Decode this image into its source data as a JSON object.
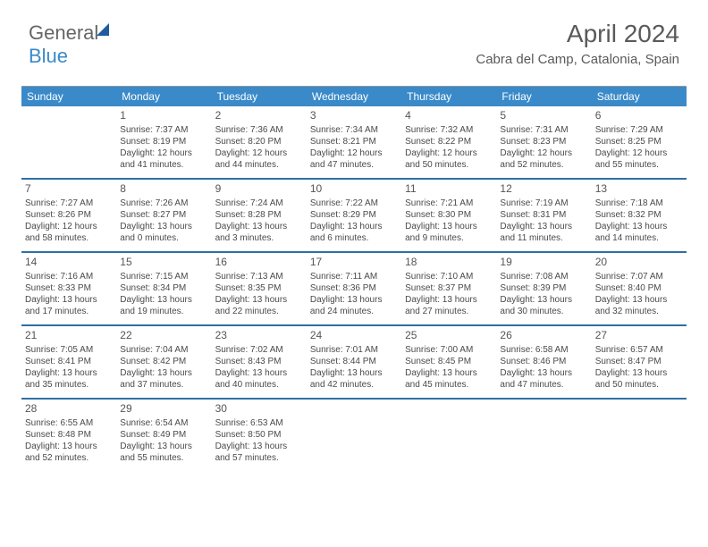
{
  "logo": {
    "general": "General",
    "blue": "Blue"
  },
  "header": {
    "month_title": "April 2024",
    "location": "Cabra del Camp, Catalonia, Spain"
  },
  "colors": {
    "header_bg": "#3a8ac9",
    "week_divider": "#2f6fa3",
    "text": "#555555"
  },
  "weekdays": [
    "Sunday",
    "Monday",
    "Tuesday",
    "Wednesday",
    "Thursday",
    "Friday",
    "Saturday"
  ],
  "days": [
    {
      "n": "1",
      "sr": "7:37 AM",
      "ss": "8:19 PM",
      "dl": "12 hours and 41 minutes."
    },
    {
      "n": "2",
      "sr": "7:36 AM",
      "ss": "8:20 PM",
      "dl": "12 hours and 44 minutes."
    },
    {
      "n": "3",
      "sr": "7:34 AM",
      "ss": "8:21 PM",
      "dl": "12 hours and 47 minutes."
    },
    {
      "n": "4",
      "sr": "7:32 AM",
      "ss": "8:22 PM",
      "dl": "12 hours and 50 minutes."
    },
    {
      "n": "5",
      "sr": "7:31 AM",
      "ss": "8:23 PM",
      "dl": "12 hours and 52 minutes."
    },
    {
      "n": "6",
      "sr": "7:29 AM",
      "ss": "8:25 PM",
      "dl": "12 hours and 55 minutes."
    },
    {
      "n": "7",
      "sr": "7:27 AM",
      "ss": "8:26 PM",
      "dl": "12 hours and 58 minutes."
    },
    {
      "n": "8",
      "sr": "7:26 AM",
      "ss": "8:27 PM",
      "dl": "13 hours and 0 minutes."
    },
    {
      "n": "9",
      "sr": "7:24 AM",
      "ss": "8:28 PM",
      "dl": "13 hours and 3 minutes."
    },
    {
      "n": "10",
      "sr": "7:22 AM",
      "ss": "8:29 PM",
      "dl": "13 hours and 6 minutes."
    },
    {
      "n": "11",
      "sr": "7:21 AM",
      "ss": "8:30 PM",
      "dl": "13 hours and 9 minutes."
    },
    {
      "n": "12",
      "sr": "7:19 AM",
      "ss": "8:31 PM",
      "dl": "13 hours and 11 minutes."
    },
    {
      "n": "13",
      "sr": "7:18 AM",
      "ss": "8:32 PM",
      "dl": "13 hours and 14 minutes."
    },
    {
      "n": "14",
      "sr": "7:16 AM",
      "ss": "8:33 PM",
      "dl": "13 hours and 17 minutes."
    },
    {
      "n": "15",
      "sr": "7:15 AM",
      "ss": "8:34 PM",
      "dl": "13 hours and 19 minutes."
    },
    {
      "n": "16",
      "sr": "7:13 AM",
      "ss": "8:35 PM",
      "dl": "13 hours and 22 minutes."
    },
    {
      "n": "17",
      "sr": "7:11 AM",
      "ss": "8:36 PM",
      "dl": "13 hours and 24 minutes."
    },
    {
      "n": "18",
      "sr": "7:10 AM",
      "ss": "8:37 PM",
      "dl": "13 hours and 27 minutes."
    },
    {
      "n": "19",
      "sr": "7:08 AM",
      "ss": "8:39 PM",
      "dl": "13 hours and 30 minutes."
    },
    {
      "n": "20",
      "sr": "7:07 AM",
      "ss": "8:40 PM",
      "dl": "13 hours and 32 minutes."
    },
    {
      "n": "21",
      "sr": "7:05 AM",
      "ss": "8:41 PM",
      "dl": "13 hours and 35 minutes."
    },
    {
      "n": "22",
      "sr": "7:04 AM",
      "ss": "8:42 PM",
      "dl": "13 hours and 37 minutes."
    },
    {
      "n": "23",
      "sr": "7:02 AM",
      "ss": "8:43 PM",
      "dl": "13 hours and 40 minutes."
    },
    {
      "n": "24",
      "sr": "7:01 AM",
      "ss": "8:44 PM",
      "dl": "13 hours and 42 minutes."
    },
    {
      "n": "25",
      "sr": "7:00 AM",
      "ss": "8:45 PM",
      "dl": "13 hours and 45 minutes."
    },
    {
      "n": "26",
      "sr": "6:58 AM",
      "ss": "8:46 PM",
      "dl": "13 hours and 47 minutes."
    },
    {
      "n": "27",
      "sr": "6:57 AM",
      "ss": "8:47 PM",
      "dl": "13 hours and 50 minutes."
    },
    {
      "n": "28",
      "sr": "6:55 AM",
      "ss": "8:48 PM",
      "dl": "13 hours and 52 minutes."
    },
    {
      "n": "29",
      "sr": "6:54 AM",
      "ss": "8:49 PM",
      "dl": "13 hours and 55 minutes."
    },
    {
      "n": "30",
      "sr": "6:53 AM",
      "ss": "8:50 PM",
      "dl": "13 hours and 57 minutes."
    }
  ],
  "labels": {
    "sunrise": "Sunrise:",
    "sunset": "Sunset:",
    "daylight": "Daylight:"
  },
  "start_offset": 1
}
